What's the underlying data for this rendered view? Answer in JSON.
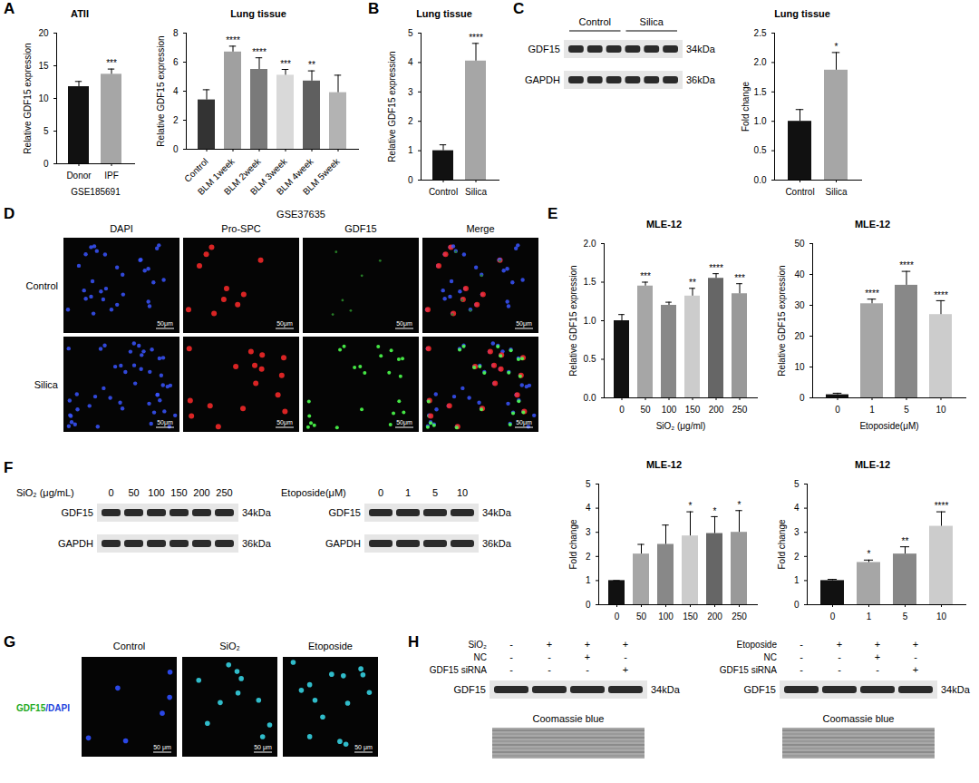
{
  "chart_data": [
    {
      "type": "bar",
      "title": "ATII",
      "ylabel": "Relative GDF15 expression",
      "xlabel": "GSE185691",
      "categories": [
        "Donor",
        "IPF"
      ],
      "values": [
        11.8,
        13.7
      ],
      "errors": [
        0.8,
        0.8
      ],
      "stars": [
        null,
        "***"
      ],
      "colors": [
        "#111111",
        "#a6a6a6"
      ],
      "ylim": [
        0,
        20
      ],
      "yticks": [
        0,
        5,
        10,
        15,
        20
      ]
    },
    {
      "type": "bar",
      "title": "Lung tissue",
      "ylabel": "Relative GDF15 expression",
      "categories": [
        "Control",
        "BLM 1week",
        "BLM 2week",
        "BLM 3week",
        "BLM 4week",
        "BLM 5week"
      ],
      "values": [
        3.4,
        6.7,
        5.5,
        5.1,
        4.7,
        3.9
      ],
      "errors": [
        0.7,
        0.4,
        0.8,
        0.4,
        0.7,
        1.2
      ],
      "stars": [
        null,
        "****",
        "****",
        "***",
        "**",
        null
      ],
      "colors": [
        "#333333",
        "#a0a0a0",
        "#7a7a7a",
        "#d9d9d9",
        "#5f5f5f",
        "#b3b3b3"
      ],
      "ylim": [
        0,
        8
      ],
      "yticks": [
        0,
        2,
        4,
        6,
        8
      ]
    },
    {
      "type": "bar",
      "title": "Lung tissue",
      "ylabel": "Relative GDF15 expression",
      "categories": [
        "Control",
        "Silica"
      ],
      "values": [
        1.0,
        4.05
      ],
      "errors": [
        0.2,
        0.6
      ],
      "stars": [
        null,
        "****"
      ],
      "colors": [
        "#111111",
        "#a6a6a6"
      ],
      "ylim": [
        0,
        5
      ],
      "yticks": [
        0,
        1,
        2,
        3,
        4,
        5
      ]
    },
    {
      "type": "bar",
      "title": "Lung tissue",
      "ylabel": "Fold change",
      "categories": [
        "Control",
        "Silica"
      ],
      "values": [
        1.0,
        1.87
      ],
      "errors": [
        0.2,
        0.3
      ],
      "stars": [
        null,
        "*"
      ],
      "colors": [
        "#111111",
        "#a6a6a6"
      ],
      "ylim": [
        0,
        2.5
      ],
      "yticks": [
        {
          "value": 0,
          "label": "0.0"
        },
        0.5,
        {
          "value": 1,
          "label": "1.0"
        },
        1.5,
        {
          "value": 2,
          "label": "2.0"
        },
        2.5
      ]
    },
    {
      "type": "bar",
      "title": "MLE-12",
      "ylabel": "Relative GDF15 expression",
      "xlabel": "SiO₂ (μg/ml)",
      "categories": [
        "0",
        "50",
        "100",
        "150",
        "200",
        "250"
      ],
      "values": [
        1.0,
        1.45,
        1.2,
        1.32,
        1.55,
        1.35
      ],
      "errors": [
        0.08,
        0.05,
        0.04,
        0.1,
        0.06,
        0.13
      ],
      "stars": [
        null,
        "***",
        null,
        "**",
        "****",
        "***"
      ],
      "colors": [
        "#111111",
        "#a6a6a6",
        "#888888",
        "#cccccc",
        "#666666",
        "#999999"
      ],
      "ylim": [
        0,
        2
      ],
      "yticks": [
        {
          "value": 0,
          "label": "0.0"
        },
        0.5,
        {
          "value": 1,
          "label": "1.0"
        },
        1.5,
        {
          "value": 2,
          "label": "2.0"
        }
      ]
    },
    {
      "type": "bar",
      "title": "MLE-12",
      "ylabel": "Relative GDF15 expression",
      "xlabel": "Etoposide(μM)",
      "categories": [
        "0",
        "1",
        "5",
        "10"
      ],
      "values": [
        1,
        30.5,
        36.5,
        27
      ],
      "errors": [
        0.5,
        1.5,
        4.5,
        4.5
      ],
      "stars": [
        null,
        "****",
        "****",
        "****"
      ],
      "colors": [
        "#111111",
        "#a6a6a6",
        "#888888",
        "#cccccc"
      ],
      "ylim": [
        0,
        50
      ],
      "yticks": [
        0,
        10,
        20,
        30,
        40,
        50
      ]
    },
    {
      "type": "bar",
      "title": "MLE-12",
      "ylabel": "Fold change",
      "categories": [
        "0",
        "50",
        "100",
        "150",
        "200",
        "250"
      ],
      "values": [
        1,
        2.1,
        2.5,
        2.85,
        2.95,
        3.0
      ],
      "errors": [
        0,
        0.4,
        0.8,
        1.0,
        0.7,
        0.9
      ],
      "stars": [
        null,
        null,
        null,
        "*",
        "*",
        "*"
      ],
      "colors": [
        "#111111",
        "#a6a6a6",
        "#888888",
        "#cccccc",
        "#666666",
        "#999999"
      ],
      "ylim": [
        0,
        5
      ],
      "yticks": [
        0,
        1,
        2,
        3,
        4,
        5
      ]
    },
    {
      "type": "bar",
      "title": "MLE-12",
      "ylabel": "Fold change",
      "categories": [
        "0",
        "1",
        "5",
        "10"
      ],
      "values": [
        1,
        1.75,
        2.1,
        3.25
      ],
      "errors": [
        0.05,
        0.1,
        0.3,
        0.6
      ],
      "stars": [
        null,
        "*",
        "**",
        "****"
      ],
      "colors": [
        "#111111",
        "#a6a6a6",
        "#888888",
        "#cccccc"
      ],
      "ylim": [
        0,
        5
      ],
      "yticks": [
        0,
        1,
        2,
        3,
        4,
        5
      ]
    }
  ],
  "figure": {
    "panel_letters": [
      "A",
      "B",
      "C",
      "D",
      "E",
      "F",
      "G",
      "H"
    ],
    "C_blot": {
      "groups": [
        {
          "label": "Control",
          "lanes": 3
        },
        {
          "label": "Silica",
          "lanes": 3
        }
      ],
      "bands": [
        {
          "name": "GDF15",
          "size": "34kDa"
        },
        {
          "name": "GAPDH",
          "size": "36kDa"
        }
      ]
    },
    "D_images": {
      "title": "GSE37635",
      "columns": [
        "DAPI",
        "Pro-SPC",
        "GDF15",
        "Merge"
      ],
      "rows": [
        "Control",
        "Silica"
      ],
      "scale_bar": "50μm"
    },
    "F_blots": [
      {
        "title": "SiO₂ (μg/mL)",
        "lanes": [
          "0",
          "50",
          "100",
          "150",
          "200",
          "250"
        ],
        "bands": [
          {
            "name": "GDF15",
            "size": "34kDa"
          },
          {
            "name": "GAPDH",
            "size": "36kDa"
          }
        ]
      },
      {
        "title": "Etoposide(μM)",
        "lanes": [
          "0",
          "1",
          "5",
          "10"
        ],
        "bands": [
          {
            "name": "GDF15",
            "size": "34kDa"
          },
          {
            "name": "GAPDH",
            "size": "36kDa"
          }
        ]
      }
    ],
    "G_images": {
      "label": "GDF15/DAPI",
      "columns": [
        "Control",
        "SiO₂",
        "Etoposide"
      ],
      "scale_bar": "50 μm"
    },
    "H_blots": [
      {
        "rows": [
          {
            "label": "SiO₂",
            "signs": [
              "-",
              "+",
              "+",
              "+"
            ]
          },
          {
            "label": "NC",
            "signs": [
              "-",
              "-",
              "+",
              "-"
            ]
          },
          {
            "label": "GDF15 siRNA",
            "signs": [
              "-",
              "-",
              "-",
              "+"
            ]
          }
        ],
        "bands": [
          {
            "name": "GDF15",
            "size": "34kDa"
          }
        ],
        "loading": "Coomassie blue"
      },
      {
        "rows": [
          {
            "label": "Etoposide",
            "signs": [
              "-",
              "+",
              "+",
              "+"
            ]
          },
          {
            "label": "NC",
            "signs": [
              "-",
              "-",
              "+",
              "-"
            ]
          },
          {
            "label": "GDF15 siRNA",
            "signs": [
              "-",
              "-",
              "-",
              "+"
            ]
          }
        ],
        "bands": [
          {
            "name": "GDF15",
            "size": "34kDa"
          }
        ],
        "loading": "Coomassie blue"
      }
    ]
  }
}
